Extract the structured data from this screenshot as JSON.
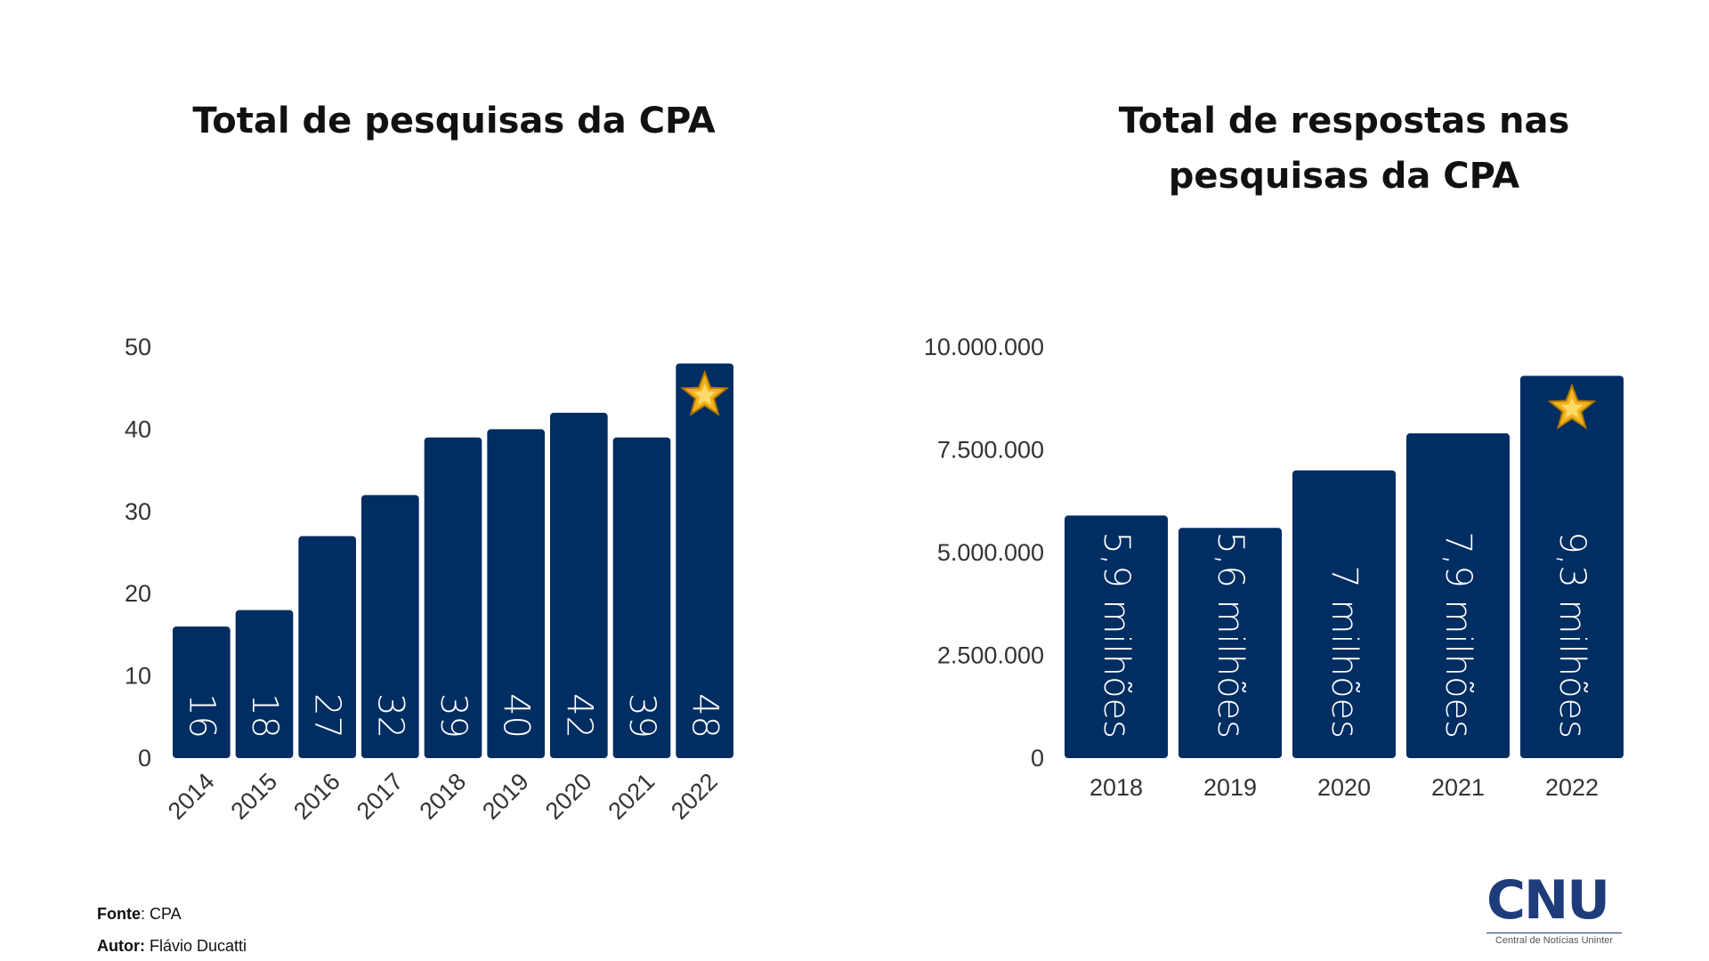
{
  "colors": {
    "bar": "#002d62",
    "bar_label": "#ffffff",
    "axis_text": "#333333",
    "star": "#f2b21b"
  },
  "charts": {
    "left": {
      "title": "Total de pesquisas da CPA"
    },
    "right": {
      "title": "Total de respostas nas pesquisas da CPA"
    }
  },
  "chart_data": [
    {
      "type": "bar",
      "title": "Total de pesquisas da CPA",
      "categories": [
        "2014",
        "2015",
        "2016",
        "2017",
        "2018",
        "2019",
        "2020",
        "2021",
        "2022"
      ],
      "values": [
        16,
        18,
        27,
        32,
        39,
        40,
        42,
        39,
        48
      ],
      "data_labels": [
        "16",
        "18",
        "27",
        "32",
        "39",
        "40",
        "42",
        "39",
        "48"
      ],
      "ylim": [
        0,
        50
      ],
      "yticks": [
        "0",
        "10",
        "20",
        "30",
        "40",
        "50"
      ],
      "ytick_values": [
        0,
        10,
        20,
        30,
        40,
        50
      ],
      "xlabel": "",
      "ylabel": "",
      "grid": false,
      "highlight": {
        "category": "2022",
        "icon": "star-icon"
      }
    },
    {
      "type": "bar",
      "title": "Total de respostas nas pesquisas da CPA",
      "categories": [
        "2018",
        "2019",
        "2020",
        "2021",
        "2022"
      ],
      "values": [
        5900000,
        5600000,
        7000000,
        7900000,
        9300000
      ],
      "data_labels": [
        "5,9 milhões",
        "5,6 milhões",
        "7 milhões",
        "7,9 milhões",
        "9,3 milhões"
      ],
      "ylim": [
        0,
        10000000
      ],
      "yticks": [
        "0",
        "2.500.000",
        "5.000.000",
        "7.500.000",
        "10.000.000"
      ],
      "ytick_values": [
        0,
        2500000,
        5000000,
        7500000,
        10000000
      ],
      "xlabel": "",
      "ylabel": "",
      "grid": false,
      "highlight": {
        "category": "2022",
        "icon": "star-icon"
      }
    }
  ],
  "footer": {
    "source_label": "Fonte",
    "source_value": ": CPA",
    "author_label": "Autor:",
    "author_value": " Flávio Ducatti"
  },
  "logo": {
    "letters": "CNU",
    "subtitle": "Central de Notícias Uninter"
  }
}
